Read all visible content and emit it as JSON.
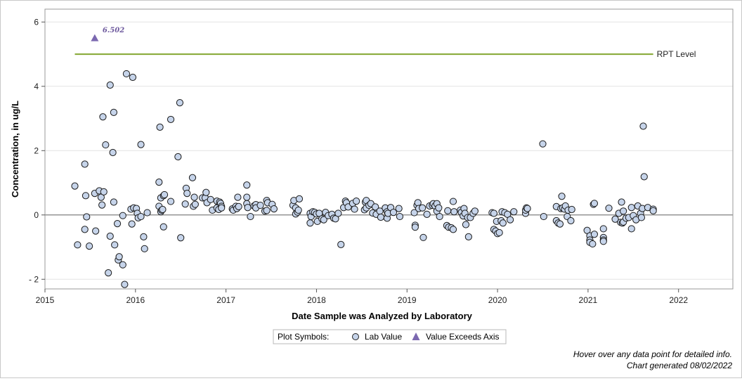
{
  "chart_data": {
    "type": "scatter",
    "xlabel": "Date Sample was Analyzed by Laboratory",
    "ylabel": "Concentration, in ug/L",
    "xlim": [
      2015.0,
      2022.6
    ],
    "ylim": [
      -2.3,
      6.4
    ],
    "x_ticks": [
      2015,
      2016,
      2017,
      2018,
      2019,
      2020,
      2021,
      2022
    ],
    "y_ticks": [
      -2,
      0,
      2,
      4,
      6
    ],
    "y_tick_labels": [
      "- 2",
      "0",
      "2",
      "4",
      "6"
    ],
    "grid": "horizontal",
    "zero_line": true,
    "reference_line": {
      "label": "RPT Level",
      "value": 5,
      "x_start": 2015.33,
      "x_end": 2021.72,
      "color": "#8aac3c"
    },
    "series": [
      {
        "name": "Lab Value",
        "marker": "circle",
        "color": "#c6d4ea",
        "points": [
          [
            2015.33,
            0.9
          ],
          [
            2015.36,
            -0.93
          ],
          [
            2015.44,
            -0.45
          ],
          [
            2015.44,
            1.58
          ],
          [
            2015.45,
            0.6
          ],
          [
            2015.46,
            -0.06
          ],
          [
            2015.49,
            -0.97
          ],
          [
            2015.55,
            0.67
          ],
          [
            2015.56,
            -0.5
          ],
          [
            2015.6,
            0.75
          ],
          [
            2015.62,
            0.55
          ],
          [
            2015.63,
            0.31
          ],
          [
            2015.64,
            3.05
          ],
          [
            2015.65,
            0.72
          ],
          [
            2015.67,
            2.18
          ],
          [
            2015.7,
            -1.8
          ],
          [
            2015.72,
            4.04
          ],
          [
            2015.72,
            -0.66
          ],
          [
            2015.75,
            1.94
          ],
          [
            2015.76,
            3.19
          ],
          [
            2015.76,
            0.4
          ],
          [
            2015.77,
            -0.93
          ],
          [
            2015.8,
            -0.27
          ],
          [
            2015.81,
            -1.4
          ],
          [
            2015.82,
            -1.3
          ],
          [
            2015.86,
            -1.55
          ],
          [
            2015.86,
            -0.02
          ],
          [
            2015.88,
            -2.16
          ],
          [
            2015.9,
            4.39
          ],
          [
            2015.95,
            0.18
          ],
          [
            2015.96,
            -0.28
          ],
          [
            2015.97,
            4.28
          ],
          [
            2015.98,
            0.22
          ],
          [
            2016.01,
            0.2
          ],
          [
            2016.02,
            0.05
          ],
          [
            2016.03,
            -0.09
          ],
          [
            2016.06,
            2.19
          ],
          [
            2016.06,
            -0.05
          ],
          [
            2016.09,
            -0.68
          ],
          [
            2016.1,
            -1.05
          ],
          [
            2016.13,
            0.07
          ],
          [
            2016.26,
            1.02
          ],
          [
            2016.26,
            0.27
          ],
          [
            2016.27,
            2.73
          ],
          [
            2016.28,
            0.53
          ],
          [
            2016.28,
            0.1
          ],
          [
            2016.29,
            0.15
          ],
          [
            2016.3,
            0.17
          ],
          [
            2016.31,
            0.6
          ],
          [
            2016.31,
            -0.37
          ],
          [
            2016.32,
            0.63
          ],
          [
            2016.39,
            2.97
          ],
          [
            2016.39,
            0.42
          ],
          [
            2016.47,
            1.81
          ],
          [
            2016.49,
            3.49
          ],
          [
            2016.5,
            -0.71
          ],
          [
            2016.55,
            0.34
          ],
          [
            2016.56,
            0.83
          ],
          [
            2016.57,
            0.67
          ],
          [
            2016.63,
            1.16
          ],
          [
            2016.64,
            0.27
          ],
          [
            2016.65,
            0.55
          ],
          [
            2016.66,
            0.33
          ],
          [
            2016.74,
            0.53
          ],
          [
            2016.77,
            0.53
          ],
          [
            2016.78,
            0.7
          ],
          [
            2016.79,
            0.38
          ],
          [
            2016.83,
            0.48
          ],
          [
            2016.85,
            0.15
          ],
          [
            2016.9,
            0.43
          ],
          [
            2016.9,
            0.22
          ],
          [
            2016.92,
            0.17
          ],
          [
            2016.93,
            0.4
          ],
          [
            2016.94,
            0.36
          ],
          [
            2016.95,
            0.27
          ],
          [
            2016.95,
            0.22
          ],
          [
            2017.07,
            0.19
          ],
          [
            2017.08,
            0.15
          ],
          [
            2017.11,
            0.27
          ],
          [
            2017.12,
            0.2
          ],
          [
            2017.13,
            0.55
          ],
          [
            2017.14,
            0.26
          ],
          [
            2017.23,
            0.93
          ],
          [
            2017.23,
            0.35
          ],
          [
            2017.23,
            0.55
          ],
          [
            2017.24,
            0.23
          ],
          [
            2017.27,
            -0.05
          ],
          [
            2017.31,
            0.28
          ],
          [
            2017.33,
            0.32
          ],
          [
            2017.33,
            0.22
          ],
          [
            2017.38,
            0.3
          ],
          [
            2017.43,
            0.12
          ],
          [
            2017.45,
            0.45
          ],
          [
            2017.45,
            0.14
          ],
          [
            2017.46,
            0.38
          ],
          [
            2017.51,
            0.33
          ],
          [
            2017.53,
            0.19
          ],
          [
            2017.74,
            0.3
          ],
          [
            2017.75,
            0.45
          ],
          [
            2017.77,
            0.22
          ],
          [
            2017.77,
            0.03
          ],
          [
            2017.79,
            0.09
          ],
          [
            2017.8,
            0.15
          ],
          [
            2017.81,
            0.5
          ],
          [
            2017.93,
            -0.25
          ],
          [
            2017.93,
            0.05
          ],
          [
            2017.94,
            -0.05
          ],
          [
            2017.96,
            0.1
          ],
          [
            2017.98,
            0.08
          ],
          [
            2018.0,
            0.03
          ],
          [
            2018.01,
            -0.2
          ],
          [
            2018.03,
            0.05
          ],
          [
            2018.06,
            -0.12
          ],
          [
            2018.08,
            -0.15
          ],
          [
            2018.1,
            0.08
          ],
          [
            2018.13,
            -0.02
          ],
          [
            2018.17,
            0.02
          ],
          [
            2018.19,
            -0.1
          ],
          [
            2018.21,
            -0.12
          ],
          [
            2018.24,
            0.05
          ],
          [
            2018.27,
            -0.92
          ],
          [
            2018.3,
            0.23
          ],
          [
            2018.32,
            0.43
          ],
          [
            2018.33,
            0.38
          ],
          [
            2018.35,
            0.25
          ],
          [
            2018.4,
            0.36
          ],
          [
            2018.42,
            0.18
          ],
          [
            2018.44,
            0.43
          ],
          [
            2018.53,
            0.16
          ],
          [
            2018.54,
            0.4
          ],
          [
            2018.55,
            0.45
          ],
          [
            2018.55,
            0.22
          ],
          [
            2018.58,
            0.3
          ],
          [
            2018.6,
            0.35
          ],
          [
            2018.62,
            0.06
          ],
          [
            2018.65,
            0.25
          ],
          [
            2018.66,
            0.02
          ],
          [
            2018.7,
            0.12
          ],
          [
            2018.71,
            -0.07
          ],
          [
            2018.76,
            0.22
          ],
          [
            2018.78,
            0.1
          ],
          [
            2018.78,
            -0.1
          ],
          [
            2018.79,
            0.05
          ],
          [
            2018.82,
            0.23
          ],
          [
            2018.85,
            0.08
          ],
          [
            2018.91,
            0.2
          ],
          [
            2018.92,
            -0.05
          ],
          [
            2019.08,
            0.07
          ],
          [
            2019.09,
            -0.32
          ],
          [
            2019.09,
            -0.38
          ],
          [
            2019.11,
            0.3
          ],
          [
            2019.12,
            0.38
          ],
          [
            2019.13,
            0.2
          ],
          [
            2019.17,
            0.22
          ],
          [
            2019.18,
            -0.7
          ],
          [
            2019.22,
            0.02
          ],
          [
            2019.25,
            0.28
          ],
          [
            2019.28,
            0.3
          ],
          [
            2019.29,
            0.35
          ],
          [
            2019.31,
            0.28
          ],
          [
            2019.33,
            0.35
          ],
          [
            2019.33,
            0.12
          ],
          [
            2019.35,
            0.22
          ],
          [
            2019.36,
            -0.05
          ],
          [
            2019.44,
            -0.33
          ],
          [
            2019.45,
            0.13
          ],
          [
            2019.46,
            -0.38
          ],
          [
            2019.49,
            -0.4
          ],
          [
            2019.51,
            -0.45
          ],
          [
            2019.51,
            0.42
          ],
          [
            2019.52,
            0.1
          ],
          [
            2019.59,
            0.15
          ],
          [
            2019.6,
            0.08
          ],
          [
            2019.62,
            -0.03
          ],
          [
            2019.63,
            0.2
          ],
          [
            2019.64,
            0.05
          ],
          [
            2019.65,
            -0.3
          ],
          [
            2019.67,
            -0.08
          ],
          [
            2019.68,
            -0.68
          ],
          [
            2019.7,
            -0.08
          ],
          [
            2019.73,
            0.05
          ],
          [
            2019.75,
            0.12
          ],
          [
            2019.94,
            0.07
          ],
          [
            2019.96,
            -0.45
          ],
          [
            2019.96,
            0.05
          ],
          [
            2019.98,
            -0.5
          ],
          [
            2019.99,
            -0.2
          ],
          [
            2020.0,
            -0.58
          ],
          [
            2020.02,
            -0.55
          ],
          [
            2020.04,
            -0.18
          ],
          [
            2020.05,
            0.1
          ],
          [
            2020.06,
            -0.25
          ],
          [
            2020.08,
            0.07
          ],
          [
            2020.11,
            0.02
          ],
          [
            2020.14,
            -0.15
          ],
          [
            2020.18,
            0.1
          ],
          [
            2020.31,
            0.05
          ],
          [
            2020.31,
            0.15
          ],
          [
            2020.32,
            0.22
          ],
          [
            2020.33,
            0.2
          ],
          [
            2020.5,
            2.21
          ],
          [
            2020.51,
            -0.05
          ],
          [
            2020.65,
            0.26
          ],
          [
            2020.65,
            -0.18
          ],
          [
            2020.67,
            -0.25
          ],
          [
            2020.69,
            -0.28
          ],
          [
            2020.7,
            0.2
          ],
          [
            2020.71,
            0.58
          ],
          [
            2020.72,
            0.22
          ],
          [
            2020.74,
            0.18
          ],
          [
            2020.75,
            0.28
          ],
          [
            2020.77,
            -0.05
          ],
          [
            2020.78,
            0.15
          ],
          [
            2020.81,
            -0.18
          ],
          [
            2020.82,
            0.17
          ],
          [
            2020.99,
            -0.48
          ],
          [
            2021.02,
            -0.65
          ],
          [
            2021.02,
            -0.78
          ],
          [
            2021.02,
            -0.85
          ],
          [
            2021.05,
            -0.9
          ],
          [
            2021.06,
            0.33
          ],
          [
            2021.07,
            0.36
          ],
          [
            2021.07,
            -0.6
          ],
          [
            2021.17,
            -0.43
          ],
          [
            2021.17,
            -0.7
          ],
          [
            2021.17,
            -0.78
          ],
          [
            2021.17,
            -0.82
          ],
          [
            2021.23,
            0.21
          ],
          [
            2021.3,
            -0.13
          ],
          [
            2021.34,
            0.05
          ],
          [
            2021.36,
            -0.23
          ],
          [
            2021.37,
            0.4
          ],
          [
            2021.38,
            -0.25
          ],
          [
            2021.39,
            0.12
          ],
          [
            2021.39,
            -0.22
          ],
          [
            2021.42,
            -0.1
          ],
          [
            2021.45,
            -0.08
          ],
          [
            2021.48,
            0.23
          ],
          [
            2021.48,
            -0.43
          ],
          [
            2021.5,
            -0.02
          ],
          [
            2021.53,
            -0.15
          ],
          [
            2021.55,
            0.28
          ],
          [
            2021.58,
            0.05
          ],
          [
            2021.59,
            -0.08
          ],
          [
            2021.6,
            0.2
          ],
          [
            2021.61,
            2.76
          ],
          [
            2021.62,
            1.19
          ],
          [
            2021.66,
            0.23
          ],
          [
            2021.72,
            0.18
          ],
          [
            2021.72,
            0.13
          ]
        ]
      },
      {
        "name": "Value Exceeds Axis",
        "marker": "triangle",
        "color": "#7b68b0",
        "points": [
          [
            2015.55,
            6.502
          ]
        ],
        "labels": [
          "6.502"
        ],
        "plot_at_y": 5.5
      }
    ],
    "legend": {
      "title": "Plot Symbols:",
      "items": [
        "Lab Value",
        "Value Exceeds Axis"
      ],
      "placement": "bottom-center"
    }
  },
  "footnotes": {
    "line1": "Hover over any data point for detailed info.",
    "line2": "Chart generated 08/02/2022"
  }
}
